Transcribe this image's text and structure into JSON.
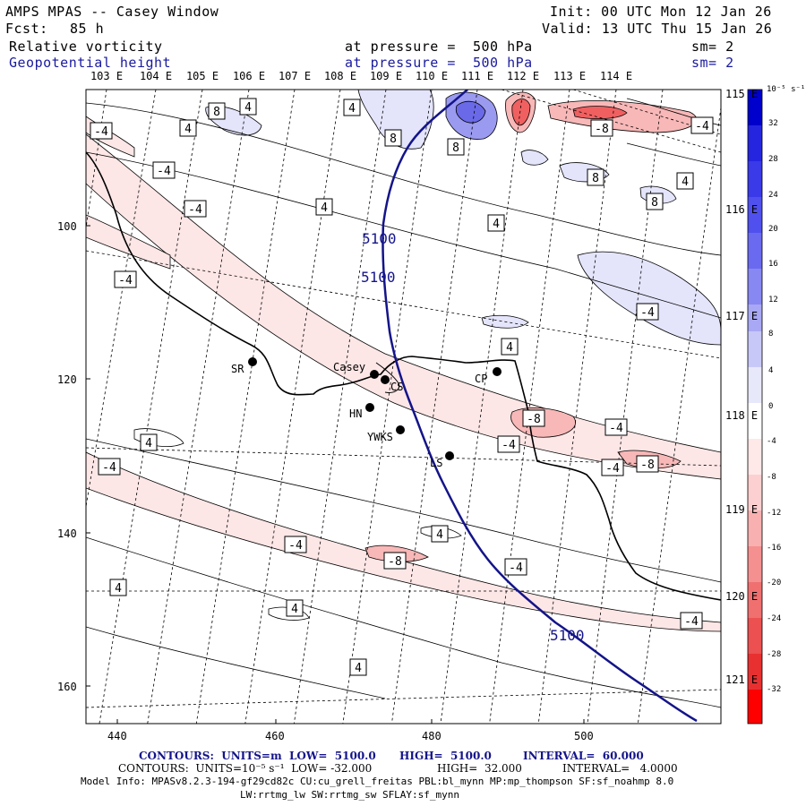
{
  "header": {
    "title": "AMPS MPAS -- Casey Window",
    "init": "Init: 00 UTC Mon 12 Jan 26",
    "fcst_label": "Fcst:",
    "fcst_value": "85 h",
    "valid": "Valid: 13 UTC Thu 15 Jan 26",
    "field1_name": "Relative vorticity",
    "field1_level": "at pressure =  500 hPa",
    "field1_sm": "sm= 2",
    "field2_name": "Geopotential height",
    "field2_level": "at pressure =  500 hPa",
    "field2_sm": "sm= 2"
  },
  "top_longitudes": [
    "103 E",
    "104 E",
    "105 E",
    "106 E",
    "107 E",
    "108 E",
    "109 E",
    "110 E",
    "111 E",
    "112 E",
    "113 E",
    "114 E"
  ],
  "right_longitudes": [
    "115 E",
    "116 E",
    "117 E",
    "118 E",
    "119 E",
    "120 E",
    "121 E"
  ],
  "x_ticks": [
    "440",
    "460",
    "480",
    "500"
  ],
  "y_ticks": [
    "100",
    "120",
    "140",
    "160"
  ],
  "colorbar": {
    "units": "10⁻⁵ s⁻¹",
    "labels": [
      "32",
      "28",
      "24",
      "20",
      "16",
      "12",
      "8",
      "4",
      "0",
      "-4",
      "-8",
      "-12",
      "-16",
      "-20",
      "-24",
      "-28",
      "-32"
    ],
    "colors": [
      "#0000cc",
      "#2020e0",
      "#3a3ae8",
      "#5555ee",
      "#6f6ff0",
      "#8c8cf2",
      "#a8a8f5",
      "#c8c8f8",
      "#e8e8fb",
      "#ffffff",
      "#ffe8e8",
      "#fcd0d0",
      "#f8b0b0",
      "#f59090",
      "#f07070",
      "#ec5050",
      "#e83030",
      "#ff0000"
    ]
  },
  "stations": [
    {
      "name": "SR"
    },
    {
      "name": "Casey"
    },
    {
      "name": "CS"
    },
    {
      "name": "HN"
    },
    {
      "name": "YWKS"
    },
    {
      "name": "LS"
    },
    {
      "name": "CP"
    }
  ],
  "height_labels": [
    "5100",
    "5100",
    "5100"
  ],
  "vort_labels": [
    "-4",
    "4",
    "8",
    "4",
    "4",
    "8",
    "8",
    "-8",
    "-4",
    "-4",
    "4",
    "8",
    "4",
    "-4",
    "-4",
    "4",
    "8",
    "4",
    "-8",
    "-4",
    "-4",
    "-4",
    "-8",
    "-4",
    "4",
    "-4",
    "-4",
    "4",
    "-8",
    "-4",
    "4",
    "4",
    "-4",
    "4"
  ],
  "footer": {
    "line1_a": "CONTOURS:  UNITS=m  LOW=  5100.0",
    "line1_b": "HIGH=  5100.0",
    "line1_c": "INTERVAL=  60.000",
    "line2_a": "CONTOURS:  UNITS=10⁻⁵ s⁻¹  LOW= -32.000",
    "line2_b": "HIGH=  32.000",
    "line2_c": "INTERVAL=   4.0000",
    "line3": "Model Info: MPASv8.2.3-194-gf29cd82c CU:cu_grell_freitas PBL:bl_mynn MP:mp_thompson SF:sf_noahmp 8.0",
    "line4": "LW:rrtmg_lw SW:rrtmg_sw SFLAY:sf_mynn"
  }
}
